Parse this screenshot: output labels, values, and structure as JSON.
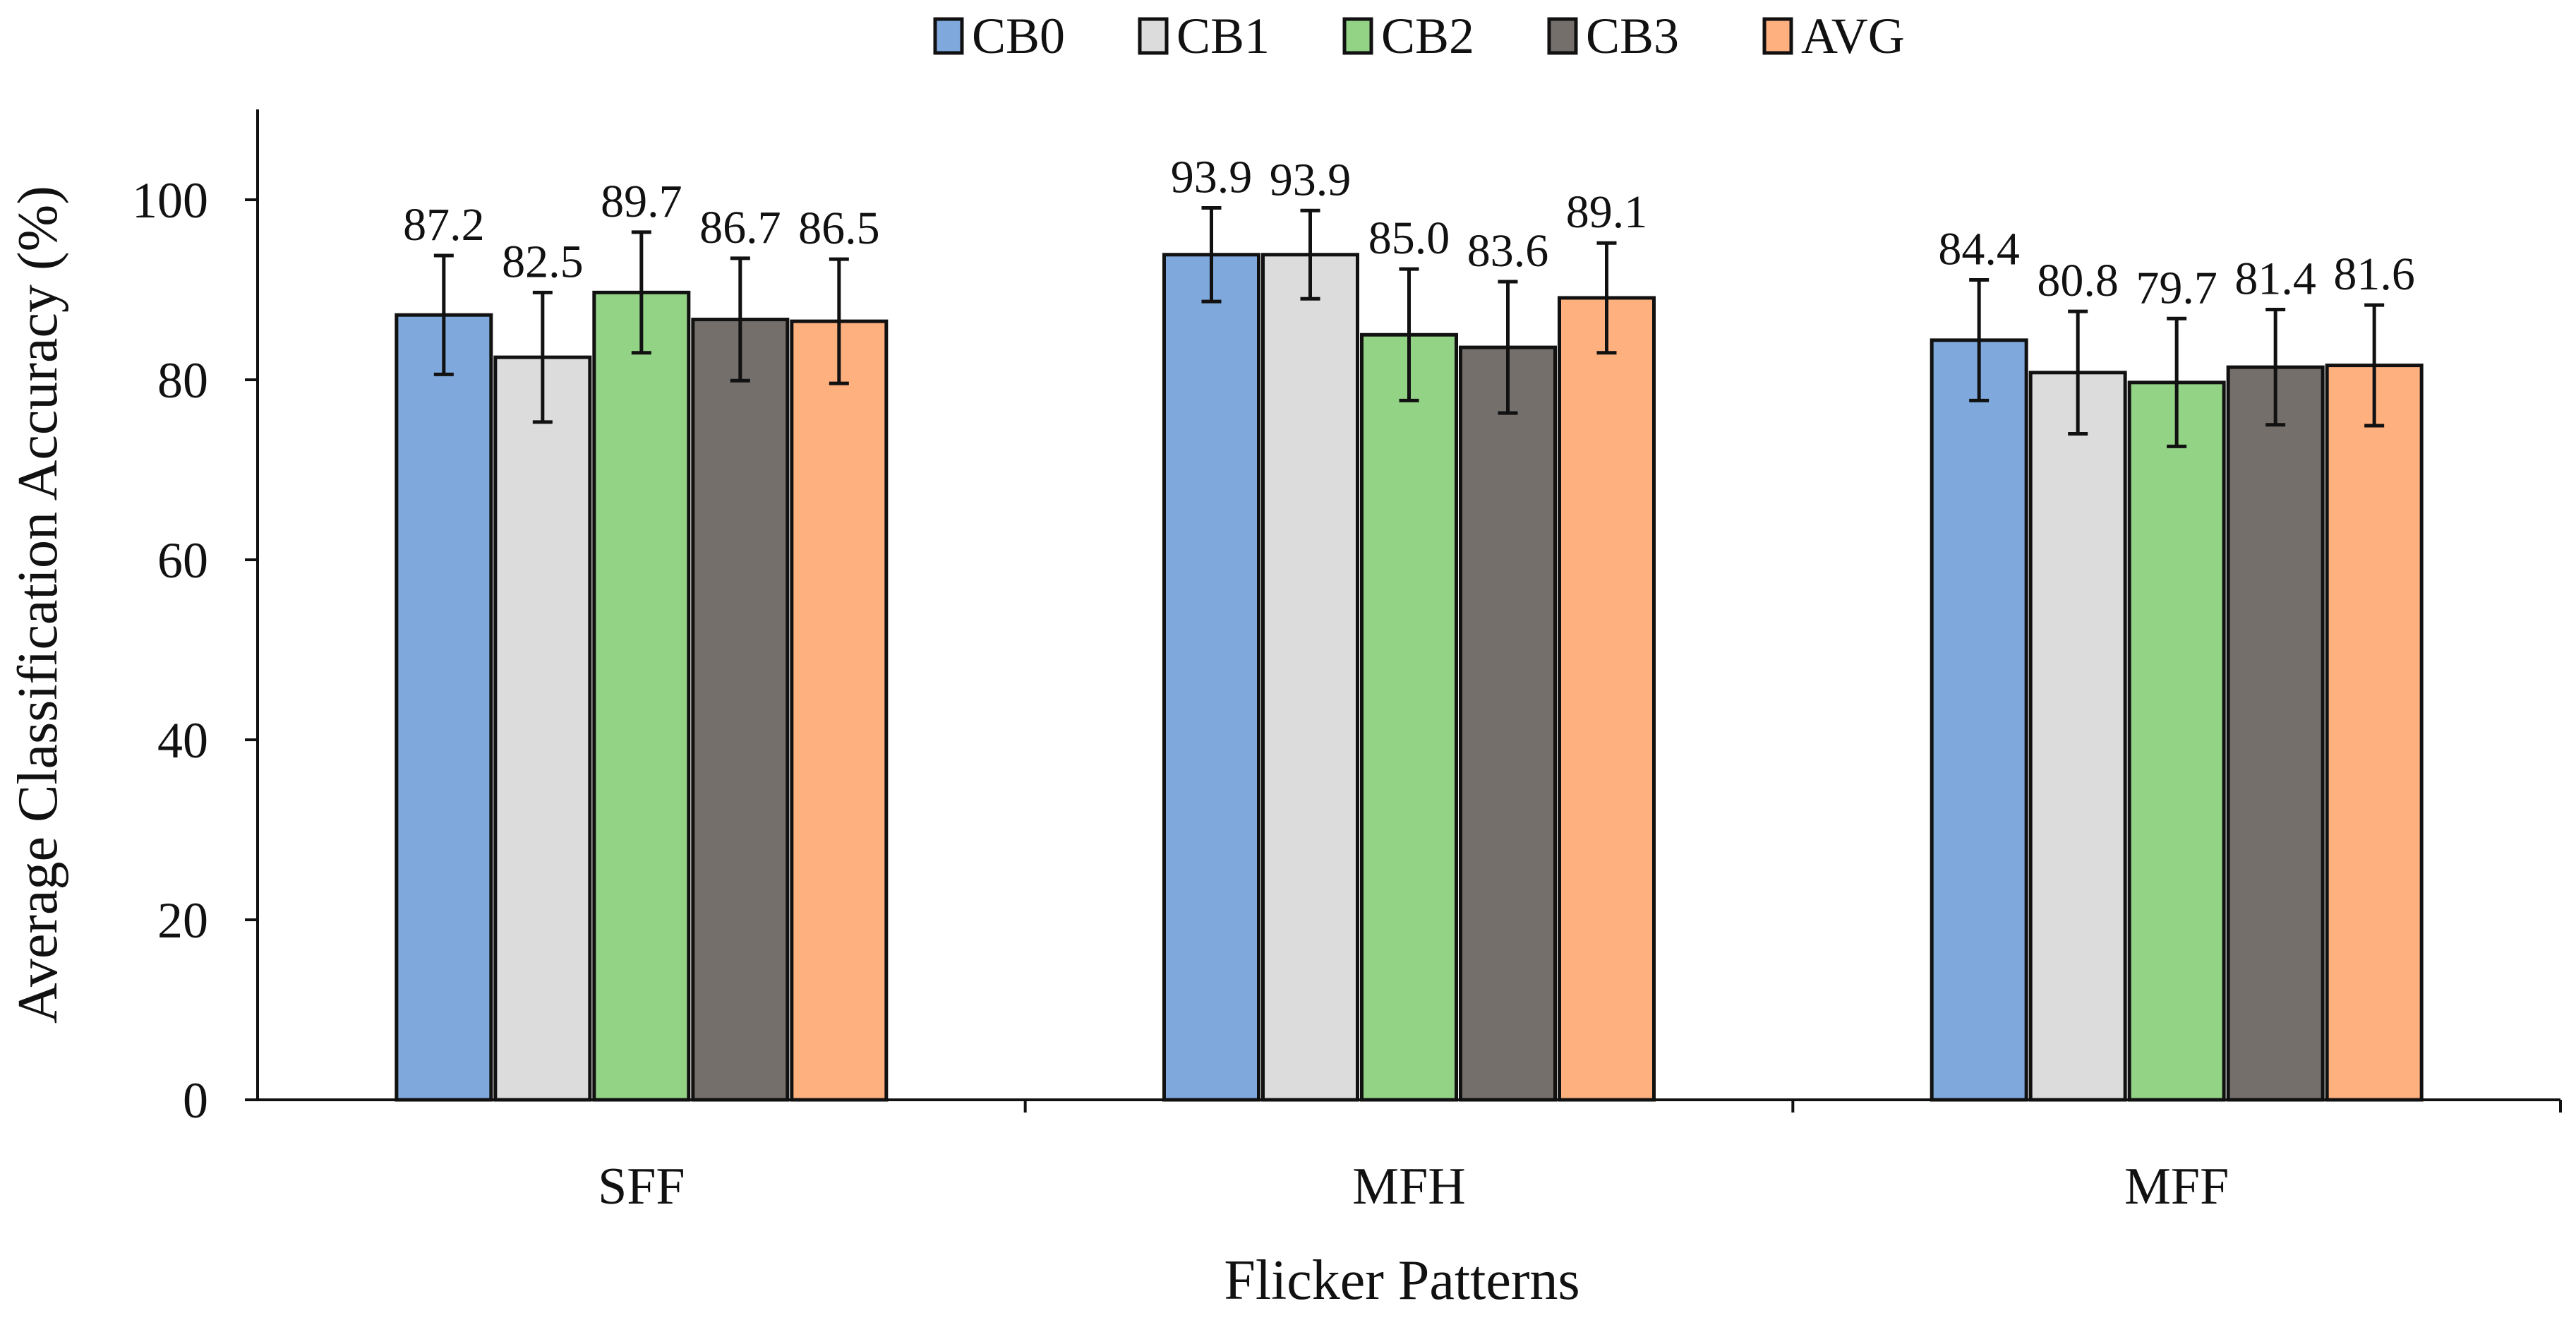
{
  "chart_data": {
    "type": "bar",
    "categories": [
      "SFF",
      "MFH",
      "MFF"
    ],
    "series": [
      {
        "name": "CB0",
        "color": "#7fa9dd",
        "values": [
          87.2,
          93.9,
          84.4
        ],
        "errors": [
          6.6,
          5.2,
          6.7
        ]
      },
      {
        "name": "CB1",
        "color": "#dcdcdc",
        "values": [
          82.5,
          93.9,
          80.8
        ],
        "errors": [
          7.2,
          4.9,
          6.8
        ]
      },
      {
        "name": "CB2",
        "color": "#93d386",
        "values": [
          89.7,
          85.0,
          79.7
        ],
        "errors": [
          6.7,
          7.3,
          7.1
        ]
      },
      {
        "name": "CB3",
        "color": "#756f6c",
        "values": [
          86.7,
          83.6,
          81.4
        ],
        "errors": [
          6.8,
          7.3,
          6.4
        ]
      },
      {
        "name": "AVG",
        "color": "#ffb07f",
        "values": [
          86.5,
          89.1,
          81.6
        ],
        "errors": [
          6.9,
          6.1,
          6.7
        ]
      }
    ],
    "data_labels": [
      [
        "87.2",
        "93.9",
        "84.4"
      ],
      [
        "82.5",
        "93.9",
        "80.8"
      ],
      [
        "89.7",
        "85.0",
        "79.7"
      ],
      [
        "86.7",
        "83.6",
        "81.4"
      ],
      [
        "86.5",
        "89.1",
        "81.6"
      ]
    ],
    "yticks": [
      "0",
      "20",
      "40",
      "60",
      "80",
      "100"
    ],
    "ylim": [
      0,
      110
    ],
    "xlabel": "Flicker Patterns",
    "ylabel": "Average Classification Accuracy (%)",
    "legend_position": "top-center",
    "grid": false,
    "error_bars": true
  }
}
